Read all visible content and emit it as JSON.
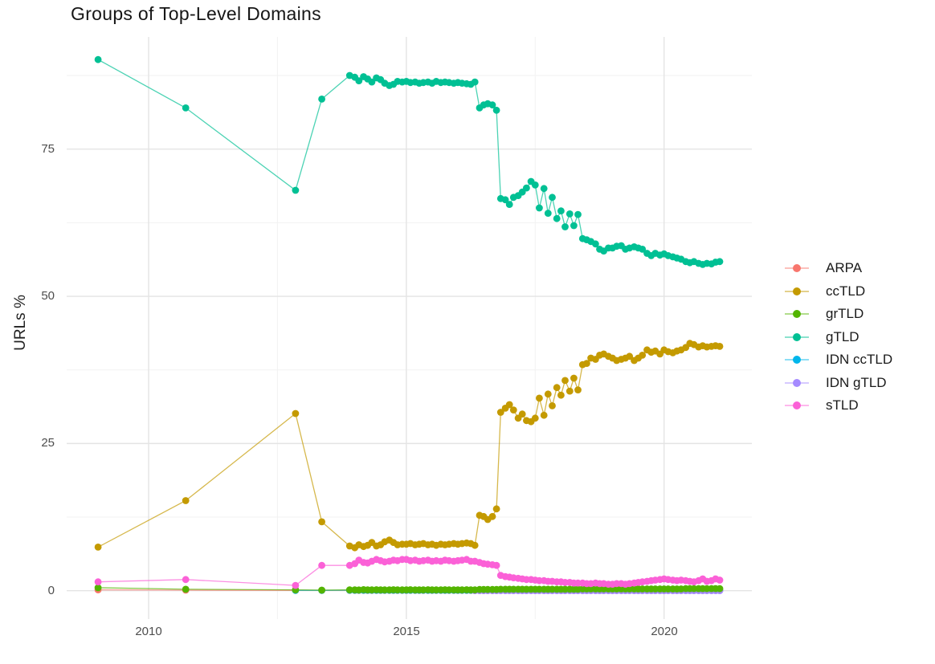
{
  "chart_data": {
    "type": "line",
    "title": "Groups of Top-Level Domains",
    "xlabel": "",
    "ylabel": "URLs %",
    "grid": true,
    "legend_position": "right",
    "xlim": [
      2008.4,
      2021.8
    ],
    "ylim": [
      -5,
      94
    ],
    "x_ticks": [
      {
        "value": 2010,
        "label": "2010"
      },
      {
        "value": 2015,
        "label": "2015"
      },
      {
        "value": 2020,
        "label": "2020"
      }
    ],
    "y_ticks": [
      {
        "value": 0,
        "label": "0"
      },
      {
        "value": 25,
        "label": "25"
      },
      {
        "value": 50,
        "label": "50"
      },
      {
        "value": 75,
        "label": "75"
      }
    ],
    "x_minor": [
      2012.5,
      2017.5
    ],
    "y_minor": [
      12.5,
      37.5,
      62.5,
      87.5
    ],
    "x": [
      2009.02,
      2010.72,
      2012.85,
      2013.36,
      2013.9,
      2014.0,
      2014.08,
      2014.17,
      2014.25,
      2014.33,
      2014.42,
      2014.5,
      2014.58,
      2014.67,
      2014.75,
      2014.83,
      2014.92,
      2015.0,
      2015.08,
      2015.17,
      2015.25,
      2015.33,
      2015.42,
      2015.5,
      2015.58,
      2015.67,
      2015.75,
      2015.83,
      2015.92,
      2016.0,
      2016.08,
      2016.17,
      2016.25,
      2016.33,
      2016.42,
      2016.5,
      2016.58,
      2016.67,
      2016.75,
      2016.83,
      2016.92,
      2017.0,
      2017.08,
      2017.17,
      2017.25,
      2017.33,
      2017.42,
      2017.5,
      2017.58,
      2017.67,
      2017.75,
      2017.83,
      2017.92,
      2018.0,
      2018.08,
      2018.17,
      2018.25,
      2018.33,
      2018.42,
      2018.5,
      2018.58,
      2018.67,
      2018.75,
      2018.83,
      2018.92,
      2019.0,
      2019.08,
      2019.17,
      2019.25,
      2019.33,
      2019.42,
      2019.5,
      2019.58,
      2019.67,
      2019.75,
      2019.83,
      2019.92,
      2020.0,
      2020.08,
      2020.17,
      2020.25,
      2020.33,
      2020.42,
      2020.5,
      2020.58,
      2020.67,
      2020.75,
      2020.83,
      2020.92,
      2021.0,
      2021.08
    ],
    "series": [
      {
        "name": "ARPA",
        "color": "#F8766D",
        "values": [
          0.15,
          0.1,
          0.05,
          0.05,
          0.05,
          0.05,
          0.05,
          0.05,
          0.05,
          0.05,
          0.05,
          0.05,
          0.05,
          0.05,
          0.05,
          0.05,
          0.05,
          0.05,
          0.05,
          0.05,
          0.05,
          0.05,
          0.05,
          0.05,
          0.05,
          0.05,
          0.05,
          0.05,
          0.05,
          0.05,
          0.05,
          0.05,
          0.05,
          0.05,
          0.05,
          0.05,
          0.05,
          0.05,
          0.05,
          0.05,
          0.05,
          0.05,
          0.05,
          0.05,
          0.05,
          0.05,
          0.05,
          0.05,
          0.05,
          0.05,
          0.05,
          0.05,
          0.05,
          0.05,
          0.05,
          0.05,
          0.05,
          0.05,
          0.05,
          0.05,
          0.05,
          0.05,
          0.05,
          0.05,
          0.05,
          0.05,
          0.05,
          0.05,
          0.05,
          0.05,
          0.05,
          0.05,
          0.05,
          0.05,
          0.05,
          0.05,
          0.05,
          0.05,
          0.05,
          0.05,
          0.05,
          0.05,
          0.05,
          0.05,
          0.05,
          0.05,
          0.05,
          0.05,
          0.05,
          0.05,
          0.05
        ]
      },
      {
        "name": "ccTLD",
        "color": "#C49A00",
        "values": [
          7.4,
          15.3,
          30.1,
          11.7,
          7.6,
          7.3,
          7.8,
          7.5,
          7.7,
          8.2,
          7.6,
          7.8,
          8.3,
          8.6,
          8.2,
          7.8,
          7.9,
          7.9,
          8.0,
          7.8,
          7.9,
          8.0,
          7.8,
          7.9,
          7.7,
          7.9,
          7.8,
          7.9,
          8.0,
          7.9,
          8.0,
          8.1,
          8.0,
          7.7,
          12.8,
          12.6,
          12.1,
          12.6,
          13.9,
          30.3,
          31.0,
          31.6,
          30.7,
          29.3,
          30.0,
          28.9,
          28.7,
          29.3,
          32.7,
          29.8,
          33.4,
          31.4,
          34.5,
          33.2,
          35.7,
          33.9,
          36.1,
          34.1,
          38.4,
          38.6,
          39.5,
          39.3,
          40.0,
          40.2,
          39.8,
          39.5,
          39.1,
          39.3,
          39.5,
          39.8,
          39.1,
          39.5,
          40.0,
          40.9,
          40.5,
          40.7,
          40.2,
          40.9,
          40.6,
          40.4,
          40.7,
          40.9,
          41.3,
          42.0,
          41.8,
          41.4,
          41.6,
          41.4,
          41.5,
          41.6,
          41.5
        ]
      },
      {
        "name": "grTLD",
        "color": "#53B400",
        "values": [
          0.5,
          0.25,
          0.15,
          0.1,
          0.15,
          0.15,
          0.12,
          0.18,
          0.15,
          0.14,
          0.16,
          0.15,
          0.13,
          0.15,
          0.17,
          0.15,
          0.14,
          0.15,
          0.16,
          0.14,
          0.15,
          0.15,
          0.16,
          0.15,
          0.14,
          0.15,
          0.16,
          0.15,
          0.15,
          0.15,
          0.15,
          0.16,
          0.15,
          0.14,
          0.2,
          0.2,
          0.2,
          0.2,
          0.2,
          0.25,
          0.25,
          0.25,
          0.25,
          0.25,
          0.25,
          0.25,
          0.25,
          0.25,
          0.25,
          0.25,
          0.25,
          0.25,
          0.25,
          0.25,
          0.25,
          0.25,
          0.25,
          0.25,
          0.3,
          0.3,
          0.3,
          0.3,
          0.3,
          0.3,
          0.3,
          0.3,
          0.3,
          0.3,
          0.3,
          0.3,
          0.3,
          0.3,
          0.3,
          0.3,
          0.3,
          0.3,
          0.3,
          0.3,
          0.3,
          0.3,
          0.3,
          0.3,
          0.35,
          0.35,
          0.35,
          0.35,
          0.35,
          0.35,
          0.35,
          0.35,
          0.35
        ]
      },
      {
        "name": "gTLD",
        "color": "#00C094",
        "values": [
          90.2,
          82.0,
          68.0,
          83.5,
          87.5,
          87.2,
          86.6,
          87.3,
          86.9,
          86.4,
          87.1,
          86.8,
          86.2,
          85.8,
          86.0,
          86.5,
          86.4,
          86.5,
          86.3,
          86.4,
          86.2,
          86.3,
          86.4,
          86.2,
          86.5,
          86.3,
          86.4,
          86.3,
          86.2,
          86.3,
          86.2,
          86.1,
          86.0,
          86.4,
          82.0,
          82.5,
          82.7,
          82.5,
          81.6,
          66.6,
          66.4,
          65.6,
          66.8,
          67.1,
          67.7,
          68.4,
          69.5,
          68.9,
          65.0,
          68.3,
          64.1,
          66.8,
          63.2,
          64.5,
          61.8,
          64.0,
          62.0,
          63.9,
          59.8,
          59.6,
          59.3,
          58.9,
          58.0,
          57.7,
          58.2,
          58.2,
          58.5,
          58.6,
          58.0,
          58.2,
          58.4,
          58.2,
          58.0,
          57.3,
          56.9,
          57.3,
          57.0,
          57.2,
          56.9,
          56.7,
          56.5,
          56.3,
          55.9,
          55.7,
          55.9,
          55.6,
          55.4,
          55.6,
          55.5,
          55.8,
          55.9
        ]
      },
      {
        "name": "IDN ccTLD",
        "color": "#00B6EB",
        "values": [
          null,
          null,
          0.05,
          0.05,
          0.08,
          0.08,
          0.08,
          0.08,
          0.08,
          0.08,
          0.08,
          0.08,
          0.08,
          0.08,
          0.08,
          0.08,
          0.08,
          0.08,
          0.08,
          0.08,
          0.08,
          0.08,
          0.08,
          0.08,
          0.08,
          0.08,
          0.08,
          0.08,
          0.08,
          0.08,
          0.08,
          0.08,
          0.08,
          0.08,
          0.08,
          0.08,
          0.08,
          0.08,
          0.08,
          0.08,
          0.08,
          0.08,
          0.08,
          0.08,
          0.08,
          0.08,
          0.08,
          0.08,
          0.08,
          0.08,
          0.08,
          0.08,
          0.08,
          0.08,
          0.08,
          0.08,
          0.08,
          0.08,
          0.08,
          0.08,
          0.08,
          0.08,
          0.08,
          0.08,
          0.08,
          0.08,
          0.08,
          0.08,
          0.08,
          0.08,
          0.08,
          0.08,
          0.08,
          0.08,
          0.08,
          0.08,
          0.08,
          0.08,
          0.08,
          0.08,
          0.08,
          0.08,
          0.08,
          0.08,
          0.08,
          0.08,
          0.08,
          0.08,
          0.08,
          0.08,
          0.08
        ]
      },
      {
        "name": "IDN gTLD",
        "color": "#A58AFF",
        "values": [
          null,
          null,
          null,
          null,
          null,
          null,
          null,
          null,
          null,
          null,
          null,
          null,
          null,
          null,
          null,
          null,
          null,
          null,
          null,
          null,
          null,
          null,
          null,
          null,
          null,
          null,
          null,
          null,
          null,
          null,
          null,
          null,
          null,
          0.02,
          0.02,
          0.02,
          0.02,
          0.02,
          0.02,
          0.02,
          0.02,
          0.02,
          0.02,
          0.02,
          0.02,
          0.02,
          0.02,
          0.02,
          0.02,
          0.02,
          0.02,
          0.02,
          0.02,
          0.02,
          0.02,
          0.02,
          0.02,
          0.02,
          0.02,
          0.02,
          0.02,
          0.02,
          0.02,
          0.02,
          0.02,
          0.02,
          0.02,
          0.02,
          0.02,
          0.02,
          0.02,
          0.02,
          0.02,
          0.02,
          0.02,
          0.02,
          0.02,
          0.02,
          0.02,
          0.02,
          0.02,
          0.02,
          0.02,
          0.02,
          0.02,
          0.02,
          0.02,
          0.02,
          0.02,
          0.02,
          0.02
        ]
      },
      {
        "name": "sTLD",
        "color": "#FB61D7",
        "values": [
          1.5,
          1.9,
          0.9,
          4.3,
          4.3,
          4.6,
          5.2,
          4.8,
          4.7,
          5.0,
          5.3,
          5.1,
          4.9,
          5.0,
          5.2,
          5.1,
          5.3,
          5.3,
          5.1,
          5.2,
          5.0,
          5.1,
          5.2,
          5.0,
          5.1,
          5.0,
          5.2,
          5.1,
          5.0,
          5.1,
          5.2,
          5.3,
          5.0,
          5.0,
          4.8,
          4.6,
          4.5,
          4.4,
          4.3,
          2.6,
          2.4,
          2.3,
          2.2,
          2.1,
          2.0,
          1.9,
          1.9,
          1.8,
          1.7,
          1.7,
          1.6,
          1.6,
          1.5,
          1.5,
          1.4,
          1.4,
          1.3,
          1.3,
          1.3,
          1.2,
          1.2,
          1.3,
          1.2,
          1.2,
          1.1,
          1.1,
          1.2,
          1.2,
          1.1,
          1.2,
          1.3,
          1.4,
          1.5,
          1.6,
          1.7,
          1.8,
          1.9,
          2.0,
          1.9,
          1.8,
          1.7,
          1.8,
          1.7,
          1.6,
          1.5,
          1.7,
          2.0,
          1.6,
          1.7,
          2.0,
          1.8
        ]
      }
    ],
    "draw_order": [
      0,
      4,
      5,
      2,
      1,
      3,
      6
    ]
  }
}
